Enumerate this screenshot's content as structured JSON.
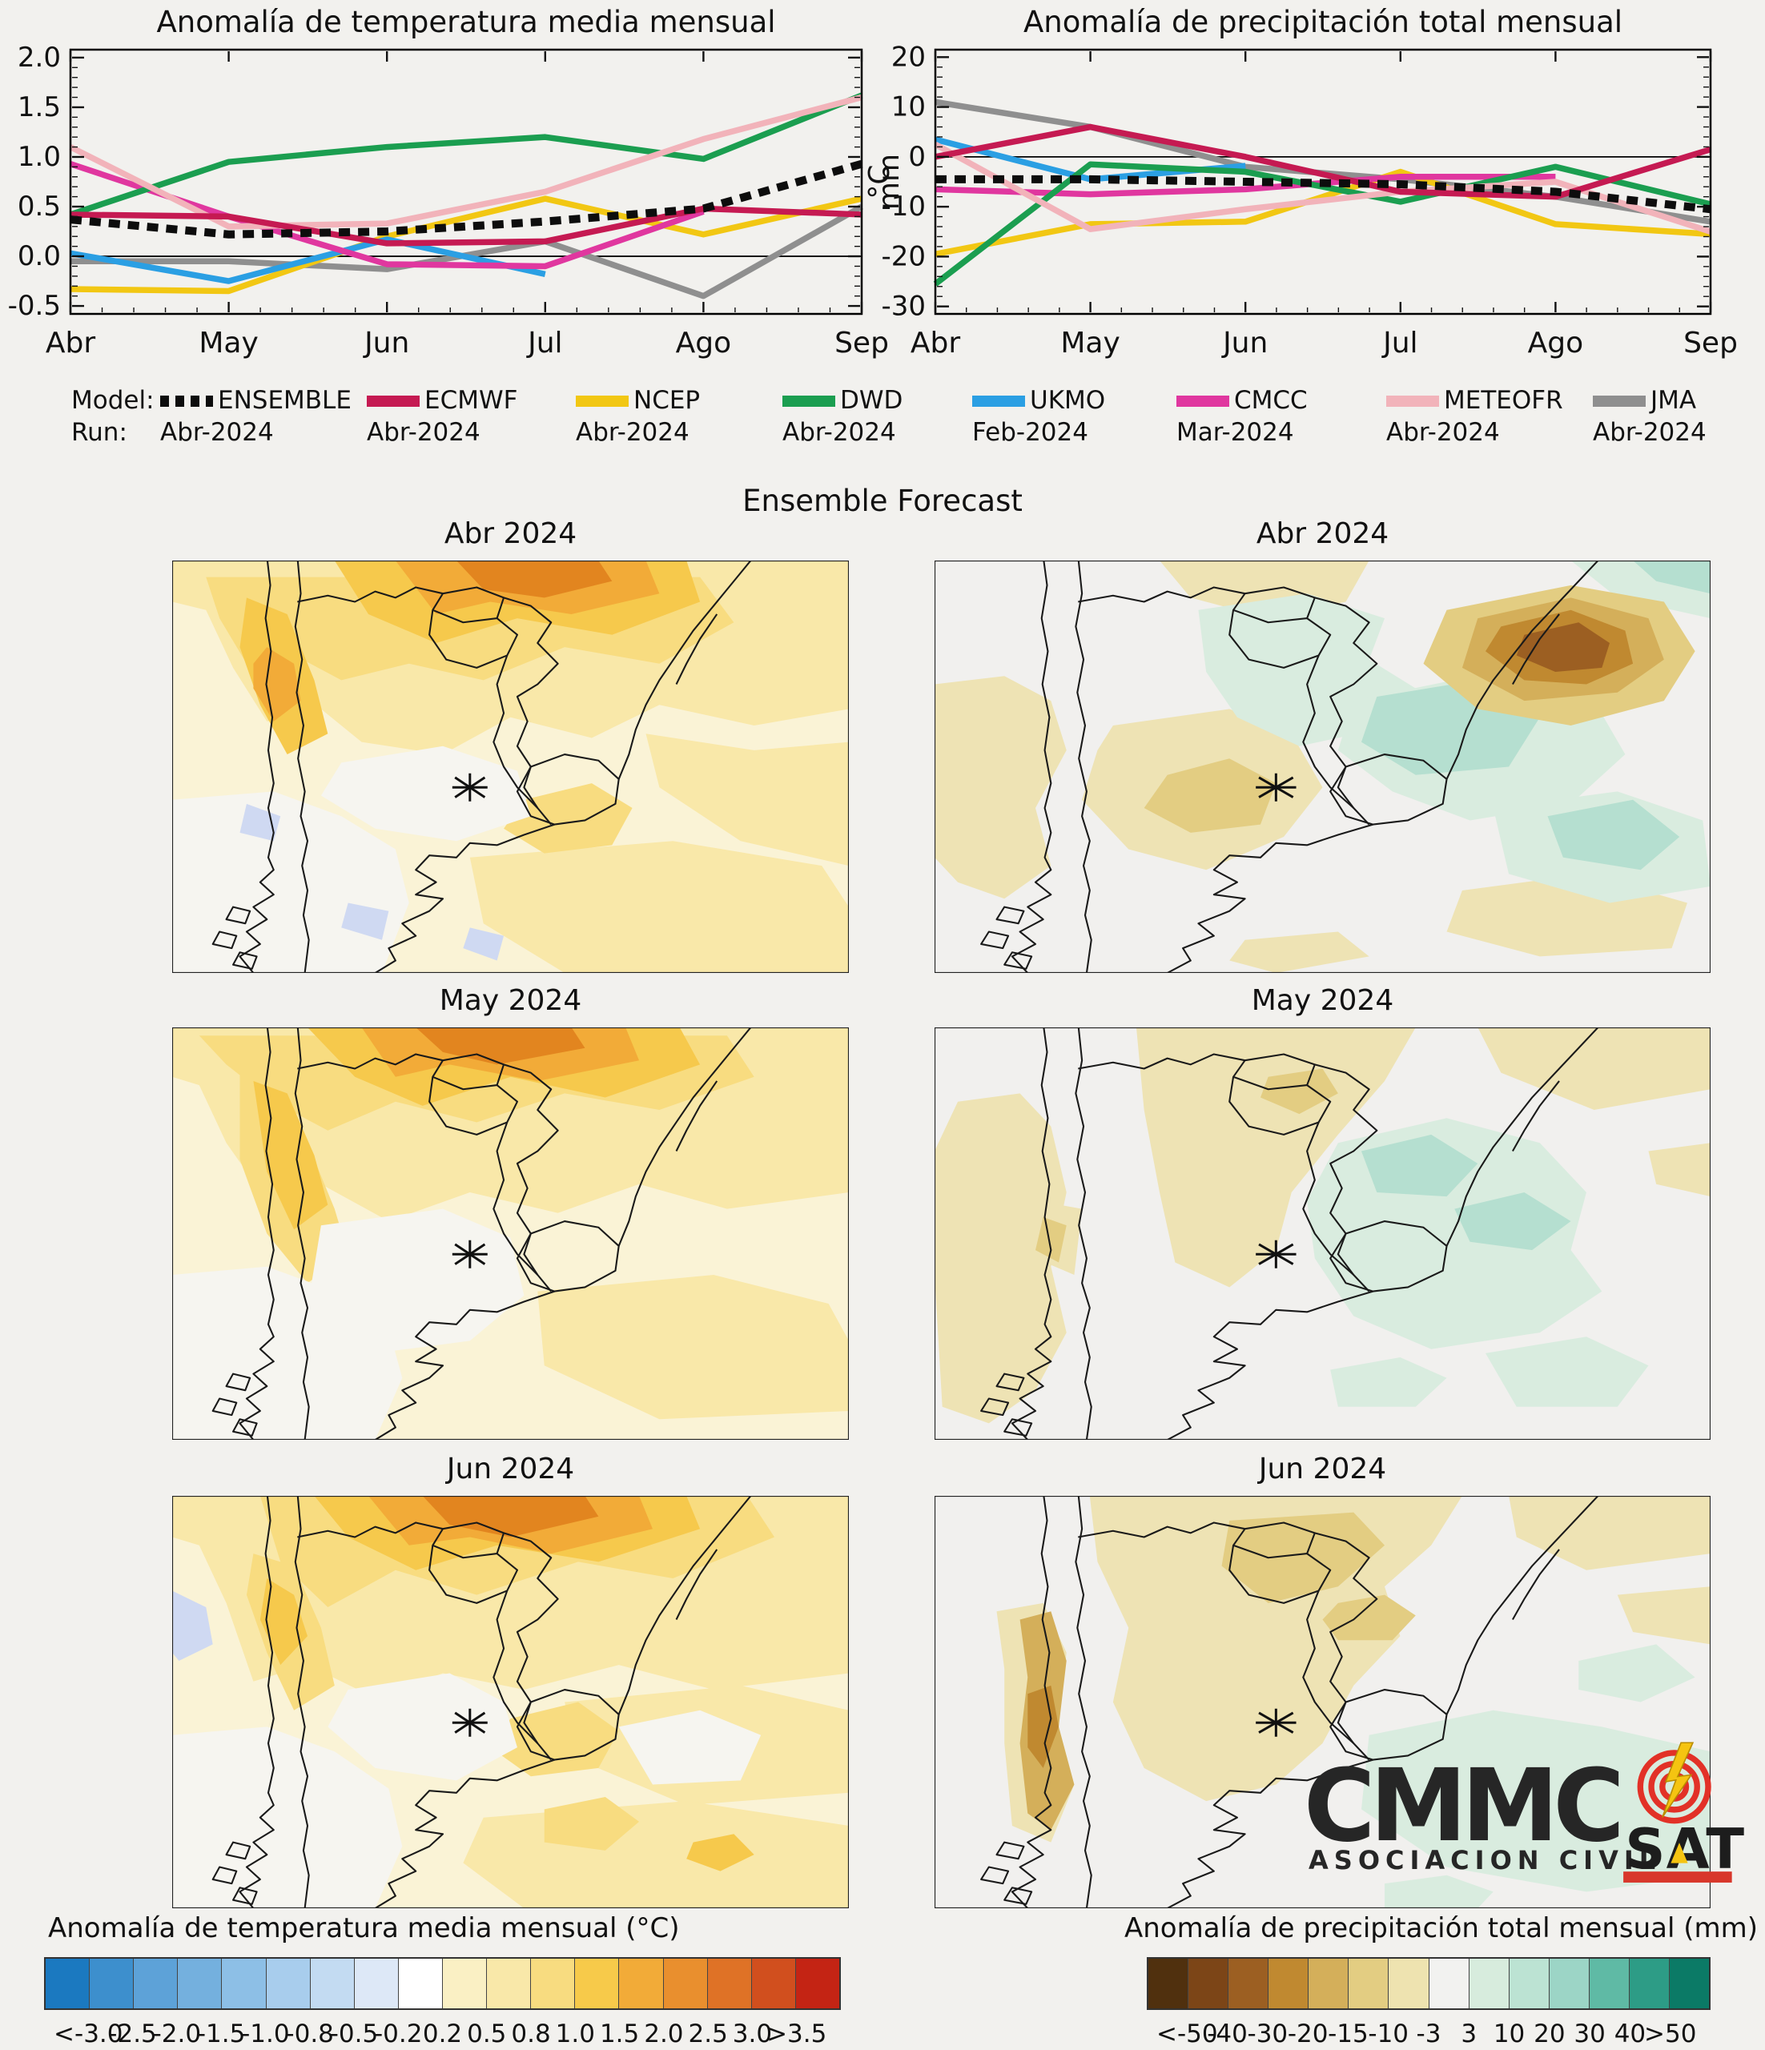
{
  "page": {
    "background": "#f2f1ee"
  },
  "chart_data": [
    {
      "type": "line",
      "title": "Anomalía de temperatura media mensual",
      "ylabel": "°C",
      "ylabel_side": "right",
      "x_categories": [
        "Abr",
        "May",
        "Jun",
        "Jul",
        "Ago",
        "Sep"
      ],
      "ylim": [
        -0.58,
        2.08
      ],
      "ytick_labels": [
        "2.0",
        "1.5",
        "1.0",
        "0.5",
        "0.0",
        "-0.5"
      ],
      "ytick_values": [
        2.0,
        1.5,
        1.0,
        0.5,
        0.0,
        -0.5
      ],
      "minor_y_step": 0.1,
      "zero_line": true,
      "grid": false,
      "series": [
        {
          "name": "ENSEMBLE",
          "values": [
            0.37,
            0.22,
            0.25,
            0.35,
            0.48,
            0.93
          ]
        },
        {
          "name": "ECMWF",
          "values": [
            0.42,
            0.4,
            0.13,
            0.15,
            0.48,
            0.42
          ]
        },
        {
          "name": "NCEP",
          "values": [
            -0.33,
            -0.35,
            0.2,
            0.58,
            0.22,
            0.58
          ]
        },
        {
          "name": "DWD",
          "values": [
            0.42,
            0.95,
            1.1,
            1.2,
            0.98,
            1.62
          ]
        },
        {
          "name": "UKMO",
          "values": [
            0.03,
            -0.25,
            0.17,
            -0.18,
            null,
            null
          ]
        },
        {
          "name": "CMCC",
          "values": [
            0.93,
            0.4,
            -0.08,
            -0.1,
            0.45,
            null
          ]
        },
        {
          "name": "METEOFR",
          "values": [
            1.1,
            0.3,
            0.33,
            0.65,
            1.18,
            1.6
          ]
        },
        {
          "name": "JMA",
          "values": [
            -0.05,
            -0.05,
            -0.13,
            0.15,
            -0.4,
            0.5
          ]
        }
      ]
    },
    {
      "type": "line",
      "title": "Anomalía de precipitación total mensual",
      "ylabel": "mm",
      "ylabel_side": "left",
      "x_categories": [
        "Abr",
        "May",
        "Jun",
        "Jul",
        "Ago",
        "Sep"
      ],
      "ylim": [
        -31.5,
        21.5
      ],
      "ytick_labels": [
        "20",
        "10",
        "0",
        "-10",
        "-20",
        "-30"
      ],
      "ytick_values": [
        20,
        10,
        0,
        -10,
        -20,
        -30
      ],
      "minor_y_step": 2,
      "zero_line": true,
      "grid": false,
      "series": [
        {
          "name": "ENSEMBLE",
          "values": [
            -4.5,
            -4.5,
            -5,
            -5.5,
            -7,
            -10.5
          ]
        },
        {
          "name": "ECMWF",
          "values": [
            0,
            6,
            0,
            -7,
            -8,
            1.5
          ]
        },
        {
          "name": "NCEP",
          "values": [
            -19.5,
            -13.5,
            -13,
            -3,
            -13.5,
            -15.5
          ]
        },
        {
          "name": "DWD",
          "values": [
            -25.5,
            -1.5,
            -3,
            -9,
            -2,
            -9.5
          ]
        },
        {
          "name": "UKMO",
          "values": [
            3.5,
            -4.5,
            -1.8,
            null,
            null,
            null
          ]
        },
        {
          "name": "CMCC",
          "values": [
            -6.5,
            -7.5,
            -6.5,
            -4,
            -4,
            null
          ]
        },
        {
          "name": "METEOFR",
          "values": [
            2.5,
            -14.5,
            -10.5,
            -7,
            -5,
            -15
          ]
        },
        {
          "name": "JMA",
          "values": [
            11,
            6,
            -2,
            -4.5,
            -8,
            -13
          ]
        }
      ]
    }
  ],
  "legend": {
    "model_label": "Model:",
    "run_label": "Run:",
    "entries": [
      {
        "name": "ENSEMBLE",
        "run": "Abr-2024",
        "color": "#0d0d0d",
        "dashed": true
      },
      {
        "name": "ECMWF",
        "run": "Abr-2024",
        "color": "#c51a52",
        "dashed": false
      },
      {
        "name": "NCEP",
        "run": "Abr-2024",
        "color": "#f2c713",
        "dashed": false
      },
      {
        "name": "DWD",
        "run": "Abr-2024",
        "color": "#1b9e50",
        "dashed": false
      },
      {
        "name": "UKMO",
        "run": "Feb-2024",
        "color": "#2b9fe3",
        "dashed": false
      },
      {
        "name": "CMCC",
        "run": "Mar-2024",
        "color": "#e0379f",
        "dashed": false
      },
      {
        "name": "METEOFR",
        "run": "Abr-2024",
        "color": "#f2b3ba",
        "dashed": false
      },
      {
        "name": "JMA",
        "run": "Abr-2024",
        "color": "#8f8f8f",
        "dashed": false
      }
    ]
  },
  "forecast": {
    "heading": "Ensemble Forecast",
    "marker": "asterisk",
    "maps": [
      {
        "title": "Abr 2024",
        "art": "temp_abr",
        "kind": "temperature"
      },
      {
        "title": "Abr 2024",
        "art": "pr_abr",
        "kind": "precipitation"
      },
      {
        "title": "May 2024",
        "art": "temp_may",
        "kind": "temperature"
      },
      {
        "title": "May 2024",
        "art": "pr_may",
        "kind": "precipitation"
      },
      {
        "title": "Jun 2024",
        "art": "temp_jun",
        "kind": "temperature"
      },
      {
        "title": "Jun 2024",
        "art": "pr_jun",
        "kind": "precipitation"
      }
    ]
  },
  "palette": {
    "t0": "#faf3d6",
    "t1": "#f9e8a9",
    "t2": "#f8dc80",
    "t3": "#f6c94c",
    "t4": "#f2ab38",
    "t5": "#e2851f",
    "tw": "#f6f5f0",
    "tb": "#cfd9f2",
    "p0": "#f1f0ee",
    "n1": "#eee3b4",
    "n2": "#e3cd82",
    "n3": "#d4af5a",
    "b1": "#c08930",
    "b2": "#9c5f22",
    "g1": "#d9ecdf",
    "g2": "#b5dfd0",
    "g3": "#8fd0bf"
  },
  "colorbars": [
    {
      "title": "Anomalía de temperatura media mensual (°C)",
      "labels": [
        "<-3.0",
        "-2.5",
        "-2.0",
        "-1.5",
        "-1.0",
        "-0.8",
        "-0.5",
        "-0.2",
        "0.2",
        "0.5",
        "0.8",
        "1.0",
        "1.5",
        "2.0",
        "2.5",
        "3.0",
        ">3.5"
      ],
      "colors": [
        "#1b79c0",
        "#3d8fcd",
        "#5da2d8",
        "#74b0de",
        "#8dbfe6",
        "#a8cded",
        "#c3dbf2",
        "#dde8f7",
        "#ffffff",
        "#faf0c4",
        "#f9e8a9",
        "#f8dc80",
        "#f7ca4a",
        "#f2ab38",
        "#e98f2e",
        "#df7226",
        "#d14f1e",
        "#c42414"
      ]
    },
    {
      "title": "Anomalía de precipitación total mensual (mm)",
      "labels": [
        "<-50",
        "-40",
        "-30",
        "-20",
        "-15",
        "-10",
        "-3",
        "3",
        "10",
        "20",
        "30",
        "40",
        ">50"
      ],
      "colors": [
        "#50300e",
        "#7c4517",
        "#9c5f22",
        "#c08930",
        "#d4af5a",
        "#e3cd82",
        "#eee3b0",
        "#f2f2f0",
        "#d7ecdd",
        "#bce3d3",
        "#9cd5c6",
        "#5fbaa5",
        "#2d9c86",
        "#0b7a66"
      ]
    }
  ],
  "logo": {
    "name": "CMMC",
    "subtitle": "ASOCIACION CIVIL",
    "sat": "SAT"
  }
}
